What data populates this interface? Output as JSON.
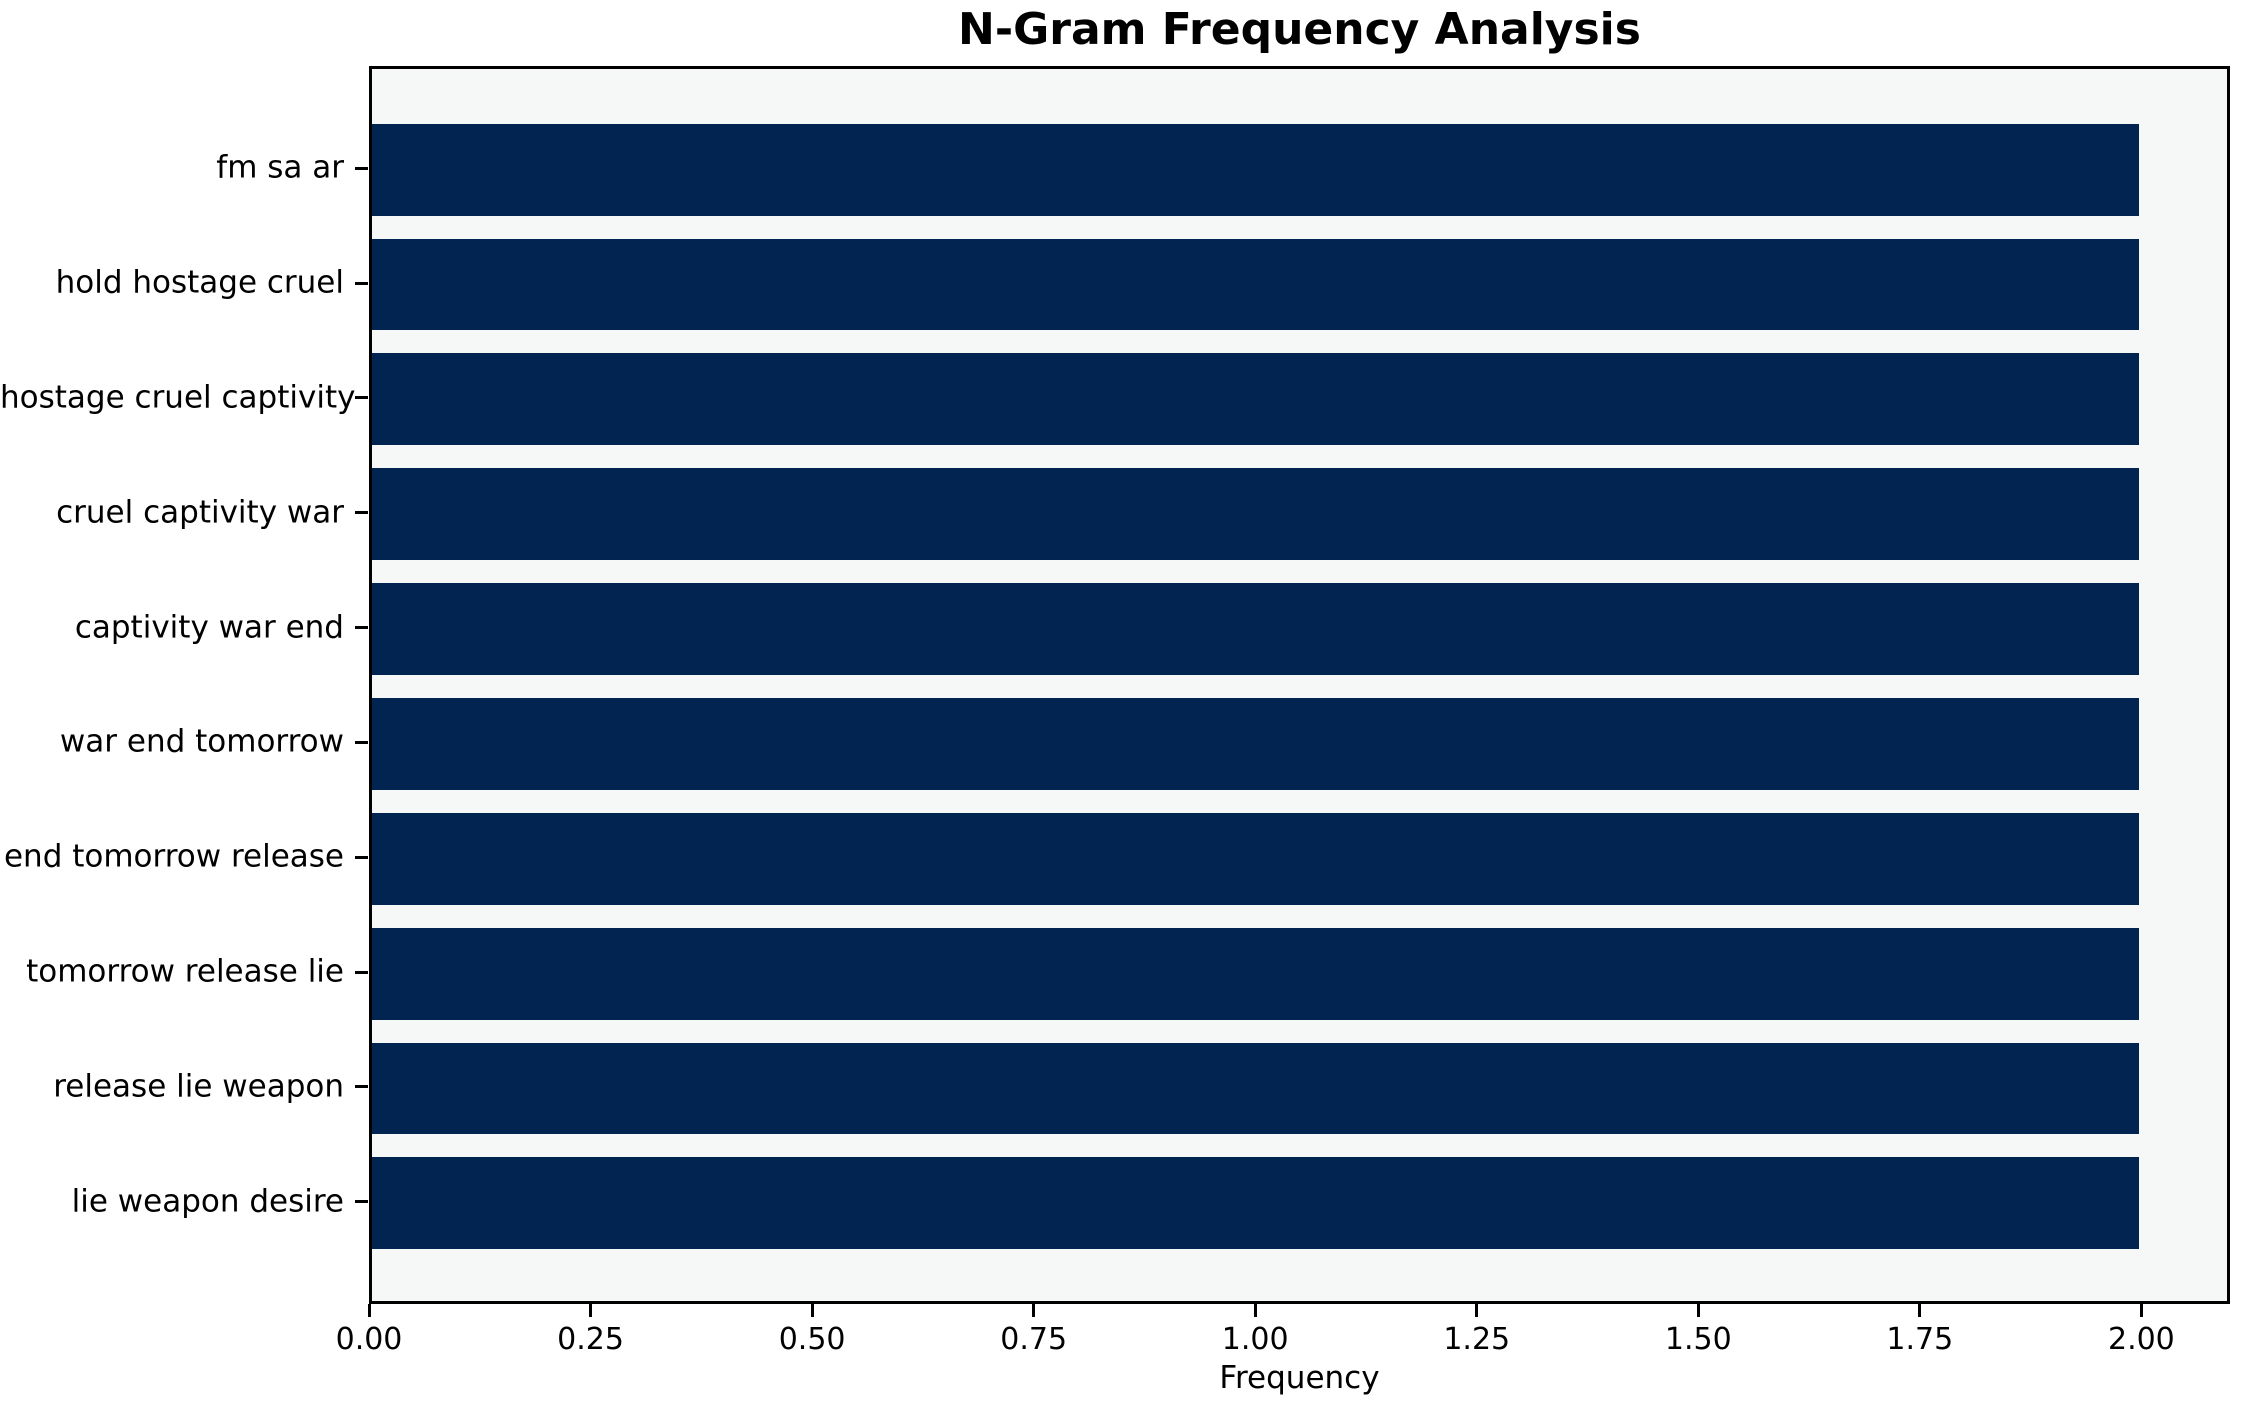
{
  "title": "N-Gram Frequency Analysis",
  "colors": {
    "bar": "#022450",
    "plot_background": "#f6f7f7",
    "figure_background": "#ffffff",
    "spine": "#000000",
    "text": "#000000"
  },
  "chart_data": {
    "type": "bar",
    "orientation": "horizontal",
    "title": "N-Gram Frequency Analysis",
    "xlabel": "Frequency",
    "ylabel": "",
    "categories": [
      "fm sa ar",
      "hold hostage cruel",
      "hostage cruel captivity",
      "cruel captivity war",
      "captivity war end",
      "war end tomorrow",
      "end tomorrow release",
      "tomorrow release lie",
      "release lie weapon",
      "lie weapon desire"
    ],
    "values": [
      2,
      2,
      2,
      2,
      2,
      2,
      2,
      2,
      2,
      2
    ],
    "xlim": [
      0,
      2.1
    ],
    "xtick_labels": [
      "0.00",
      "0.25",
      "0.50",
      "0.75",
      "1.00",
      "1.25",
      "1.50",
      "1.75",
      "2.00"
    ],
    "bar_thickness_fraction": 0.8,
    "grid": false,
    "legend": false
  }
}
